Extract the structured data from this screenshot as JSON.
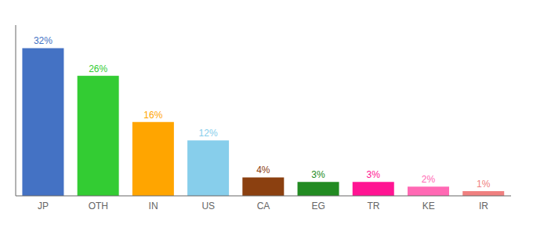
{
  "chart_data": {
    "type": "bar",
    "categories": [
      "JP",
      "OTH",
      "IN",
      "US",
      "CA",
      "EG",
      "TR",
      "KE",
      "IR"
    ],
    "values": [
      32,
      26,
      16,
      12,
      4,
      3,
      3,
      2,
      1
    ],
    "value_labels": [
      "32%",
      "26%",
      "16%",
      "12%",
      "4%",
      "3%",
      "3%",
      "2%",
      "1%"
    ],
    "colors": [
      "#4472c4",
      "#33cc33",
      "#ffa500",
      "#87ceeb",
      "#8b4010",
      "#228b22",
      "#ff1493",
      "#ff69b4",
      "#f08080"
    ],
    "ylim": [
      0,
      37
    ],
    "data_labels": true,
    "tick_labels": "x"
  }
}
